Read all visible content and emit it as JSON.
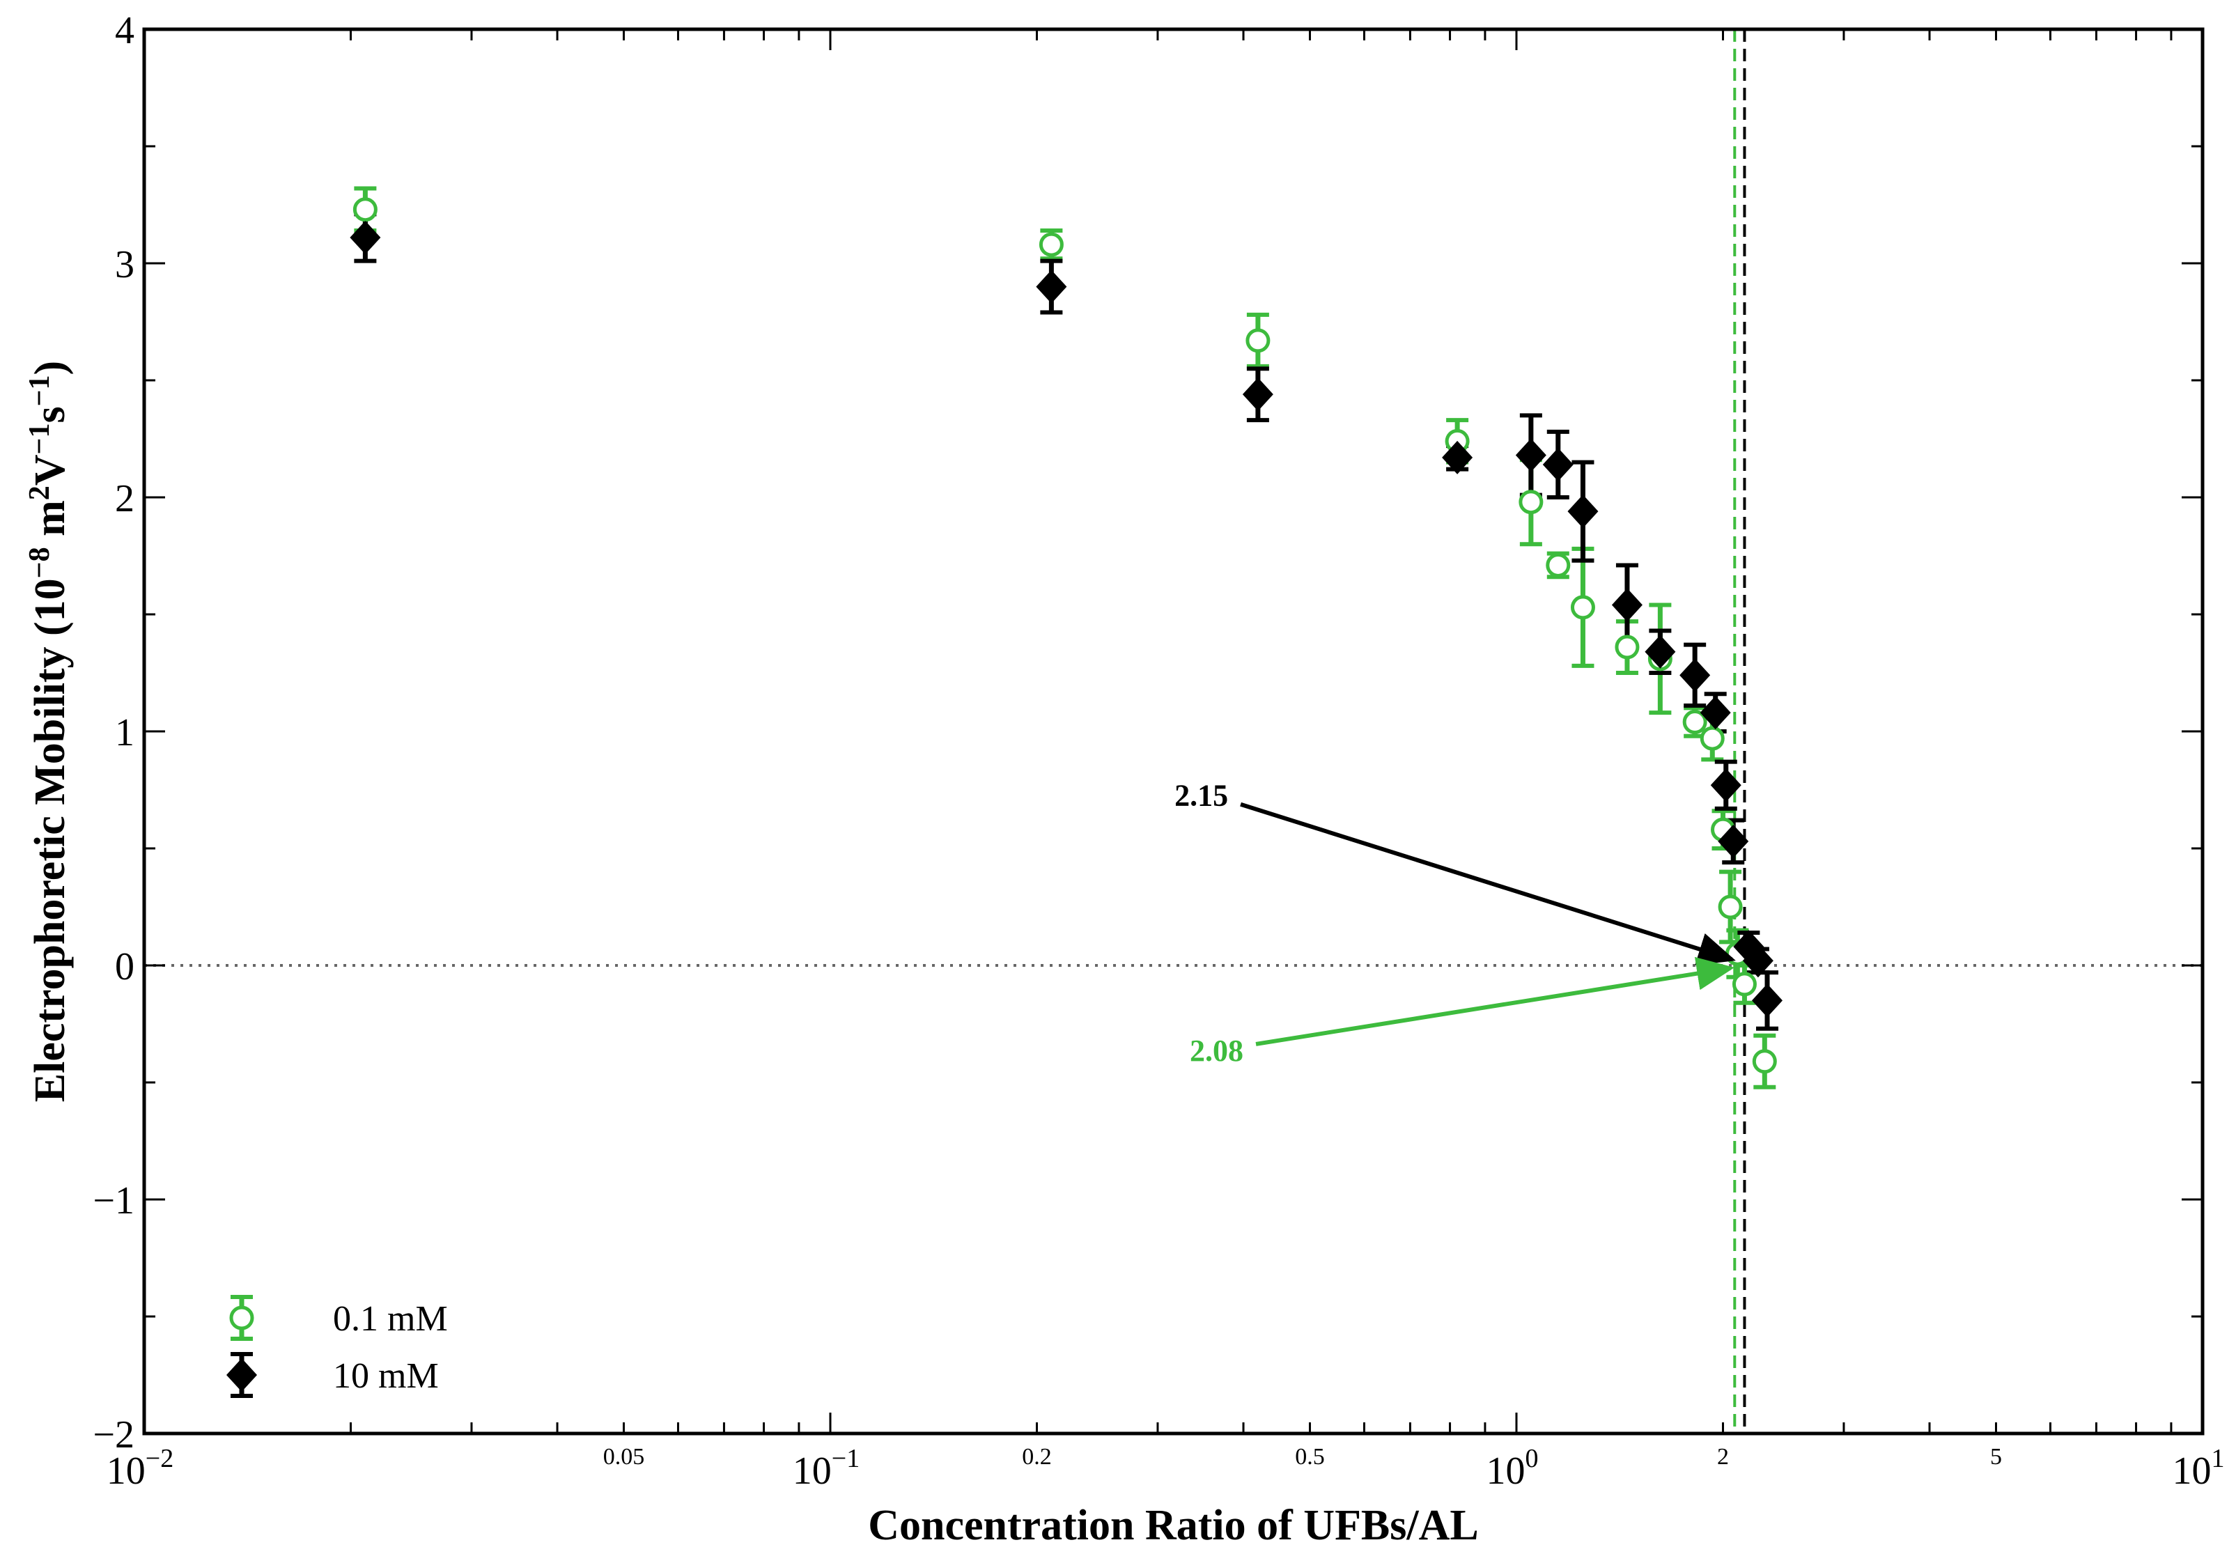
{
  "chart_data": {
    "type": "scatter",
    "title": "",
    "xlabel": "Concentration Ratio of UFBs/AL",
    "ylabel": "Electrophoretic Mobility (10",
    "ylabel_exp1": "−8",
    "ylabel_mid1": " m",
    "ylabel_exp2": "2",
    "ylabel_mid2": "V",
    "ylabel_exp3": "−1",
    "ylabel_mid3": "s",
    "ylabel_exp4": "−1",
    "ylabel_end": ")",
    "xscale": "log",
    "xlim": [
      0.01,
      10
    ],
    "ylim": [
      -2,
      4
    ],
    "x_major_ticks": [
      {
        "value": 0.01,
        "base": "10",
        "exp": "−2"
      },
      {
        "value": 0.1,
        "base": "10",
        "exp": "−1"
      },
      {
        "value": 1,
        "base": "10",
        "exp": "0"
      },
      {
        "value": 10,
        "base": "10",
        "exp": "1"
      }
    ],
    "x_minor_labels": [
      {
        "value": 0.05,
        "label": "0.05"
      },
      {
        "value": 0.2,
        "label": "0.2"
      },
      {
        "value": 0.5,
        "label": "0.5"
      },
      {
        "value": 2,
        "label": "2"
      },
      {
        "value": 5,
        "label": "5"
      }
    ],
    "y_ticks": [
      {
        "value": 4,
        "label": "4"
      },
      {
        "value": 3,
        "label": "3"
      },
      {
        "value": 2,
        "label": "2"
      },
      {
        "value": 1,
        "label": "1"
      },
      {
        "value": 0,
        "label": "0"
      },
      {
        "value": -1,
        "label": "−1"
      },
      {
        "value": -2,
        "label": "−2"
      }
    ],
    "grid": false,
    "legend_position": "bottom-left",
    "series": [
      {
        "name": "0.1 mM",
        "marker": "open-circle",
        "color": "#3dbb3d",
        "x": [
          0.021,
          0.21,
          0.42,
          0.82,
          1.05,
          1.15,
          1.25,
          1.45,
          1.62,
          1.82,
          1.93,
          2.0,
          2.05,
          2.1,
          2.15,
          2.3
        ],
        "y": [
          3.23,
          3.08,
          2.67,
          2.24,
          1.98,
          1.71,
          1.53,
          1.36,
          1.31,
          1.04,
          0.97,
          0.58,
          0.25,
          0.05,
          -0.08,
          -0.41
        ],
        "err": [
          0.09,
          0.06,
          0.11,
          0.09,
          0.18,
          0.05,
          0.25,
          0.11,
          0.23,
          0.06,
          0.09,
          0.08,
          0.15,
          0.1,
          0.08,
          0.11
        ]
      },
      {
        "name": "10 mM",
        "marker": "filled-diamond",
        "color": "#000000",
        "x": [
          0.021,
          0.21,
          0.42,
          0.82,
          1.05,
          1.15,
          1.25,
          1.45,
          1.62,
          1.82,
          1.95,
          2.02,
          2.07,
          2.18,
          2.25,
          2.32
        ],
        "y": [
          3.11,
          2.9,
          2.44,
          2.17,
          2.18,
          2.14,
          1.94,
          1.54,
          1.34,
          1.24,
          1.08,
          0.77,
          0.53,
          0.08,
          0.02,
          -0.15
        ],
        "err": [
          0.1,
          0.11,
          0.11,
          0.05,
          0.17,
          0.14,
          0.21,
          0.17,
          0.09,
          0.13,
          0.08,
          0.1,
          0.09,
          0.06,
          0.05,
          0.12
        ]
      }
    ],
    "reference_lines": [
      {
        "orientation": "horizontal",
        "value": 0,
        "style": "dotted",
        "color": "#666666"
      },
      {
        "orientation": "vertical",
        "value": 2.08,
        "style": "dashed",
        "color": "#3dbb3d"
      },
      {
        "orientation": "vertical",
        "value": 2.15,
        "style": "dashed",
        "color": "#000000"
      }
    ],
    "annotations": [
      {
        "text": "2.15",
        "color": "#000000",
        "points_to_x": 2.06,
        "points_to_y": 0.02,
        "text_x": 0.38,
        "text_y": 0.73
      },
      {
        "text": "2.08",
        "color": "#3dbb3d",
        "points_to_x": 2.05,
        "points_to_y": 0.0,
        "text_x": 0.4,
        "text_y": -0.36
      }
    ]
  }
}
